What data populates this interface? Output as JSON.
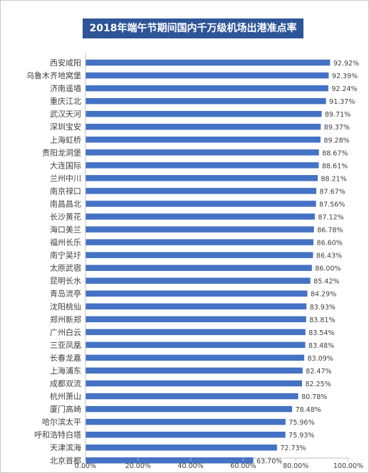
{
  "chart_data": {
    "type": "bar",
    "orientation": "horizontal",
    "title": "2018年端午节期间国内千万级机场出港准点率",
    "categories": [
      "西安咸阳",
      "乌鲁木齐地窝堡",
      "济南遥墙",
      "重庆江北",
      "武汉天河",
      "深圳宝安",
      "上海虹桥",
      "贵阳龙洞堡",
      "大连国际",
      "兰州中川",
      "南京禄口",
      "南昌昌北",
      "长沙黄花",
      "海口美兰",
      "福州长乐",
      "南宁吴圩",
      "太原武宿",
      "昆明长水",
      "青岛流亭",
      "沈阳桃仙",
      "郑州新郑",
      "广州白云",
      "三亚凤凰",
      "长春龙嘉",
      "上海浦东",
      "成都双流",
      "杭州萧山",
      "厦门高崎",
      "哈尔滨太平",
      "呼和浩特白塔",
      "天津滨海",
      "北京首都"
    ],
    "values": [
      92.92,
      92.39,
      92.24,
      91.37,
      89.71,
      89.37,
      89.28,
      88.67,
      88.61,
      88.21,
      87.67,
      87.56,
      87.12,
      86.78,
      86.6,
      86.43,
      86.0,
      85.42,
      84.29,
      83.93,
      83.81,
      83.54,
      83.48,
      83.09,
      82.47,
      82.25,
      80.78,
      78.48,
      75.96,
      75.93,
      72.73,
      63.7
    ],
    "value_labels": [
      "92.92%",
      "92.39%",
      "92.24%",
      "91.37%",
      "89.71%",
      "89.37%",
      "89.28%",
      "88.67%",
      "88.61%",
      "88.21%",
      "87.67%",
      "87.56%",
      "87.12%",
      "86.78%",
      "86.60%",
      "86.43%",
      "86.00%",
      "85.42%",
      "84.29%",
      "83.93%",
      "83.81%",
      "83.54%",
      "83.48%",
      "83.09%",
      "82.47%",
      "82.25%",
      "80.78%",
      "78.48%",
      "75.96%",
      "75.93%",
      "72.73%",
      "63.70%"
    ],
    "xlim": [
      0,
      100
    ],
    "x_ticks": [
      0,
      20,
      40,
      60,
      80,
      100
    ],
    "x_tick_labels": [
      "0.00%",
      "20.00%",
      "40.00%",
      "60.00%",
      "80.00%",
      "100.00%"
    ],
    "bar_color": "#4472c4",
    "grid": false,
    "legend": "none"
  },
  "colors": {
    "title_bg": "#2e5597",
    "title_text": "#ffffff",
    "axis": "#bfbfbf",
    "label_text": "#404040"
  }
}
